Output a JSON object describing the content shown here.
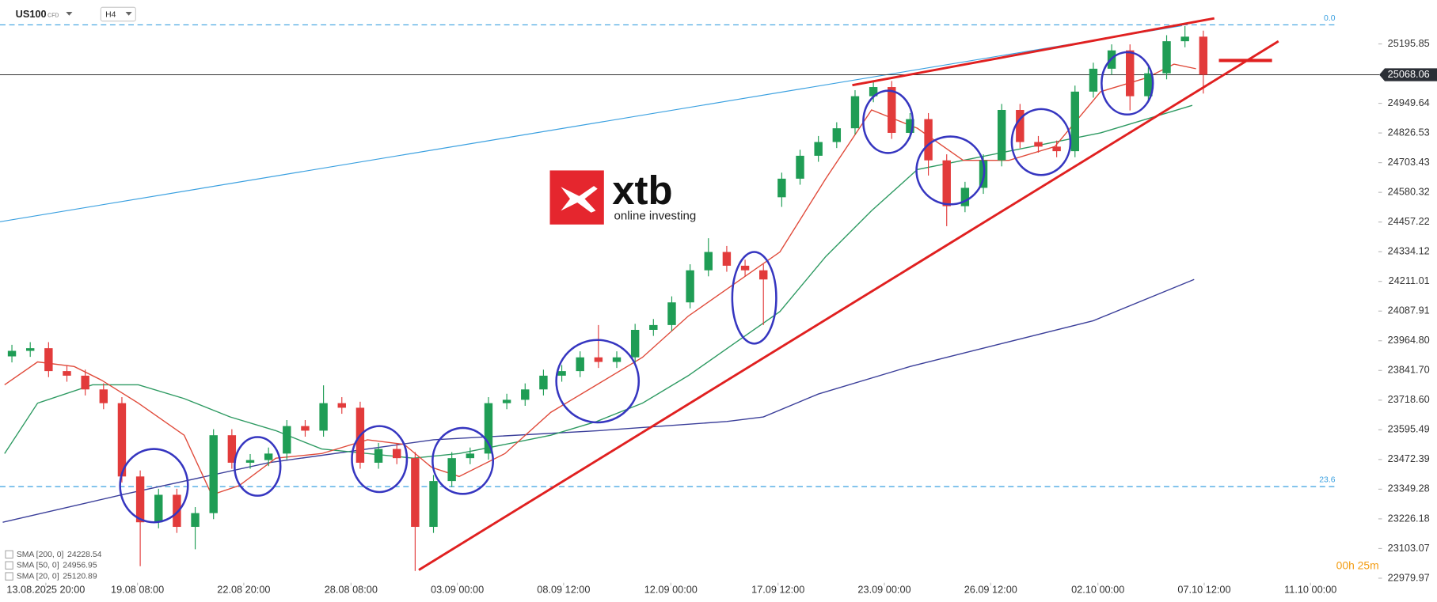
{
  "header": {
    "symbol": "US100",
    "instrument_type": "CFD",
    "timeframe": "H4"
  },
  "logo": {
    "name": "xtb",
    "tagline": "online investing"
  },
  "timer": "00h 25m",
  "chart_data": {
    "type": "candlestick",
    "open": [
      23900,
      23923,
      23934,
      23839,
      23820,
      23763,
      23706,
      23402,
      23212,
      23326,
      23193,
      23250,
      23573,
      23459,
      23470,
      23497,
      23611,
      23592,
      23706,
      23687,
      23459,
      23516,
      23478,
      23193,
      23383,
      23478,
      23497,
      23706,
      23720,
      23763,
      23820,
      23839,
      23896,
      23877,
      23896,
      24010,
      24030,
      24124,
      24257,
      24333,
      24276,
      24257,
      24560,
      24637,
      24732,
      24789,
      24846,
      24979,
      25017,
      24827,
      24884,
      24713,
      24523,
      24599,
      24713,
      24922,
      24789,
      24770,
      24751,
      24998,
      25093,
      25169,
      24979,
      25074,
      25207,
      25226
    ],
    "high": [
      23948,
      23959,
      23959,
      23864,
      23845,
      23788,
      23731,
      23427,
      23351,
      23351,
      23275,
      23598,
      23598,
      23495,
      23522,
      23636,
      23636,
      23780,
      23731,
      23712,
      23541,
      23541,
      23503,
      23408,
      23503,
      23522,
      23731,
      23745,
      23788,
      23845,
      23864,
      23921,
      24030,
      23921,
      24035,
      24055,
      24149,
      24282,
      24390,
      24358,
      24301,
      24282,
      24662,
      24757,
      24814,
      24871,
      25004,
      25042,
      25042,
      24909,
      24909,
      24738,
      24624,
      24738,
      24947,
      24947,
      24814,
      24795,
      25023,
      25118,
      25194,
      25194,
      25099,
      25232,
      25270,
      25251
    ],
    "low": [
      23875,
      23898,
      23814,
      23795,
      23738,
      23681,
      23377,
      23030,
      23187,
      23168,
      23100,
      23225,
      23434,
      23434,
      23445,
      23472,
      23567,
      23567,
      23662,
      23434,
      23434,
      23453,
      23010,
      23168,
      23358,
      23453,
      23472,
      23681,
      23695,
      23738,
      23795,
      23814,
      23852,
      23852,
      23871,
      23985,
      24005,
      24099,
      24232,
      24251,
      24232,
      24030,
      24520,
      24612,
      24707,
      24764,
      24821,
      24954,
      24802,
      24802,
      24650,
      24440,
      24498,
      24574,
      24688,
      24764,
      24745,
      24726,
      24726,
      24973,
      25068,
      24920,
      24954,
      25049,
      25182,
      24990
    ],
    "close": [
      23923,
      23934,
      23839,
      23820,
      23763,
      23706,
      23402,
      23212,
      23326,
      23193,
      23250,
      23573,
      23459,
      23470,
      23497,
      23611,
      23592,
      23706,
      23687,
      23459,
      23516,
      23478,
      23193,
      23383,
      23478,
      23497,
      23706,
      23720,
      23763,
      23820,
      23839,
      23896,
      23877,
      23896,
      24010,
      24030,
      24124,
      24257,
      24333,
      24276,
      24257,
      24219,
      24637,
      24732,
      24789,
      24846,
      24979,
      25017,
      24827,
      24884,
      24713,
      24523,
      24599,
      24713,
      24922,
      24789,
      24770,
      24751,
      24998,
      25093,
      25169,
      24979,
      25074,
      25207,
      25226,
      25068
    ],
    "up_color": "#1f9d55",
    "down_color": "#e23b3b",
    "series": [
      {
        "name": "SMA [200, 0]",
        "last": 24228.54,
        "color": "#3b3f9a",
        "x": [
          -0.5,
          6,
          14,
          23,
          32,
          39,
          41,
          44,
          49,
          54,
          59,
          64.5
        ],
        "values": [
          23212,
          23326,
          23459,
          23554,
          23592,
          23630,
          23649,
          23744,
          23858,
          23953,
          24048,
          24219
        ]
      },
      {
        "name": "SMA [50, 0]",
        "last": 24956.95,
        "color": "#2e9a62",
        "x": [
          -0.4,
          1.4,
          4.4,
          6.9,
          9.4,
          11.9,
          14.4,
          16.9,
          19.4,
          21.9,
          24.4,
          26.9,
          29.4,
          31.9,
          34.4,
          36.9,
          39.4,
          41.9,
          44.4,
          46.9,
          49.4,
          51.9,
          54.4,
          56.9,
          59.4,
          61.9,
          64.4
        ],
        "values": [
          23497,
          23706,
          23782,
          23782,
          23725,
          23649,
          23592,
          23516,
          23497,
          23478,
          23497,
          23535,
          23573,
          23630,
          23706,
          23820,
          23953,
          24086,
          24314,
          24504,
          24675,
          24713,
          24751,
          24789,
          24827,
          24884,
          24941
        ]
      },
      {
        "name": "SMA [20, 0]",
        "last": 25120.89,
        "color": "#e04a3a",
        "x": [
          -0.4,
          1.4,
          3.4,
          4.9,
          6.9,
          9.4,
          10.9,
          12.4,
          14.4,
          16.9,
          19.4,
          21.4,
          22.9,
          24.4,
          26.9,
          29.4,
          31.9,
          34.4,
          36.9,
          39.4,
          41.9,
          44.4,
          46.9,
          49.4,
          51.9,
          54.4,
          56.9,
          59.4,
          61.9,
          63.4,
          64.6
        ],
        "values": [
          23782,
          23877,
          23858,
          23801,
          23706,
          23573,
          23326,
          23364,
          23478,
          23497,
          23554,
          23535,
          23440,
          23402,
          23497,
          23668,
          23782,
          23896,
          24067,
          24200,
          24333,
          24637,
          24922,
          24846,
          24713,
          24713,
          24770,
          24998,
          25055,
          25112,
          25093
        ]
      }
    ],
    "levels": [
      {
        "price": 25275,
        "label": "0.0"
      },
      {
        "price": 23360,
        "label": "23.6"
      }
    ],
    "last_price": 25068.06,
    "xlim": [
      -0.65,
      74.35
    ],
    "xticks": [
      {
        "value": 1.85,
        "label": "13.08.2025  20:00"
      },
      {
        "value": 6.85,
        "label": "19.08 08:00"
      },
      {
        "value": 12.65,
        "label": "22.08 20:00"
      },
      {
        "value": 18.5,
        "label": "28.08 08:00"
      },
      {
        "value": 24.3,
        "label": "03.09 00:00"
      },
      {
        "value": 30.1,
        "label": "08.09 12:00"
      },
      {
        "value": 35.95,
        "label": "12.09 00:00"
      },
      {
        "value": 41.8,
        "label": "17.09 12:00"
      },
      {
        "value": 47.6,
        "label": "23.09 00:00"
      },
      {
        "value": 53.4,
        "label": "26.09 12:00"
      },
      {
        "value": 59.25,
        "label": "02.10 00:00"
      },
      {
        "value": 65.05,
        "label": "07.10 12:00"
      },
      {
        "value": 70.85,
        "label": "11.10 00:00"
      }
    ],
    "ylim": [
      22965,
      25378
    ],
    "yticks": [
      25195.85,
      24949.64,
      24826.53,
      24703.43,
      24580.32,
      24457.22,
      24334.12,
      24211.01,
      24087.91,
      {
        "value": 23964.8,
        "label": "23964.80"
      },
      {
        "value": 23841.7,
        "label": "23841.70"
      },
      {
        "value": 23718.6,
        "label": "23718.60"
      },
      23595.49,
      23472.39,
      23349.28,
      23226.18,
      23103.07,
      22979.97
    ]
  }
}
